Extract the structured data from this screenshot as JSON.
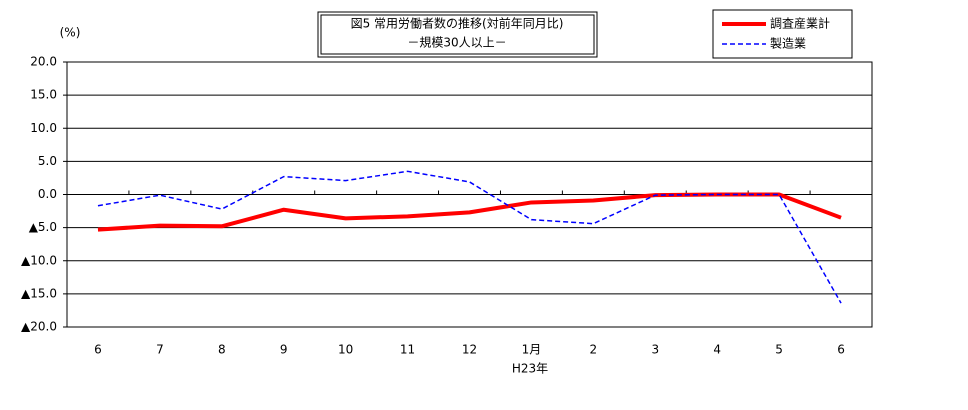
{
  "chart_data": {
    "type": "line",
    "title": "図5 常用労働者数の推移(対前年同月比)",
    "subtitle": "－規模30人以上－",
    "y_unit_label": "(%)",
    "x_annotation": "H23年",
    "categories": [
      "6",
      "7",
      "8",
      "9",
      "10",
      "11",
      "12",
      "1月",
      "2",
      "3",
      "4",
      "5",
      "6"
    ],
    "series": [
      {
        "name": "調査産業計",
        "color": "#ff0000",
        "width": 4,
        "dash": "none",
        "values": [
          -5.3,
          -4.7,
          -4.8,
          -2.3,
          -3.6,
          -3.3,
          -2.7,
          -1.2,
          -0.9,
          -0.1,
          0.0,
          0.0,
          -3.5
        ]
      },
      {
        "name": "製造業",
        "color": "#0000ff",
        "width": 1.5,
        "dash": "5,3",
        "values": [
          -1.7,
          -0.1,
          -2.2,
          2.7,
          2.1,
          3.5,
          1.9,
          -3.8,
          -4.4,
          -0.1,
          0.0,
          0.0,
          -16.4
        ]
      }
    ],
    "ylim": [
      -20,
      20
    ],
    "yticks": [
      {
        "value": 20,
        "label": "20.0"
      },
      {
        "value": 15,
        "label": "15.0"
      },
      {
        "value": 10,
        "label": "10.0"
      },
      {
        "value": 5,
        "label": "5.0"
      },
      {
        "value": 0,
        "label": "0.0"
      },
      {
        "value": -5,
        "label": "▲5.0"
      },
      {
        "value": -10,
        "label": "▲10.0"
      },
      {
        "value": -15,
        "label": "▲15.0"
      },
      {
        "value": -20,
        "label": "▲20.0"
      }
    ],
    "grid": true,
    "legend": "top-right"
  }
}
